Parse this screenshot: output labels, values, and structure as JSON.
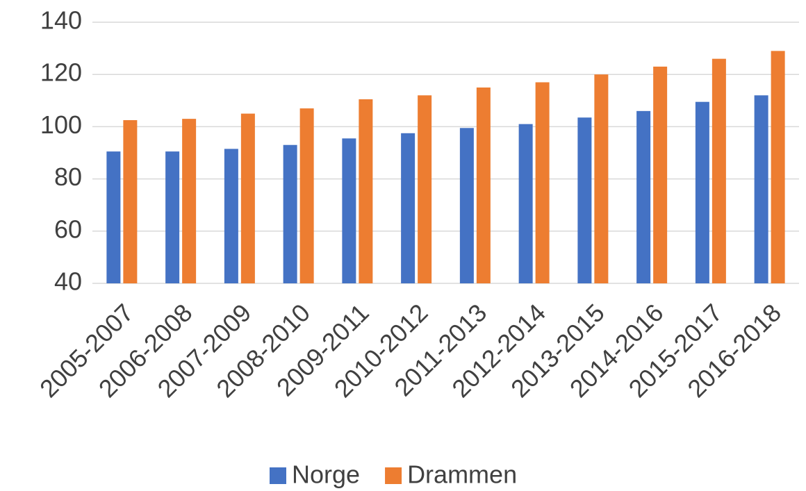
{
  "chart_data": {
    "type": "bar",
    "categories": [
      "2005-2007",
      "2006-2008",
      "2007-2009",
      "2008-2010",
      "2009-2011",
      "2010-2012",
      "2011-2013",
      "2012-2014",
      "2013-2015",
      "2014-2016",
      "2015-2017",
      "2016-2018"
    ],
    "series": [
      {
        "name": "Norge",
        "color": "#4472c4",
        "values": [
          90.5,
          90.5,
          91.5,
          93,
          95.5,
          97.5,
          99.5,
          101,
          103.5,
          106,
          109.5,
          112
        ]
      },
      {
        "name": "Drammen",
        "color": "#ed7d31",
        "values": [
          102.5,
          103,
          105,
          107,
          110.5,
          112,
          115,
          117,
          120,
          123,
          126,
          129
        ]
      }
    ],
    "ylim": [
      40,
      140
    ],
    "yticks": [
      40,
      60,
      80,
      100,
      120,
      140
    ],
    "grid": true,
    "legend": "bottom"
  }
}
